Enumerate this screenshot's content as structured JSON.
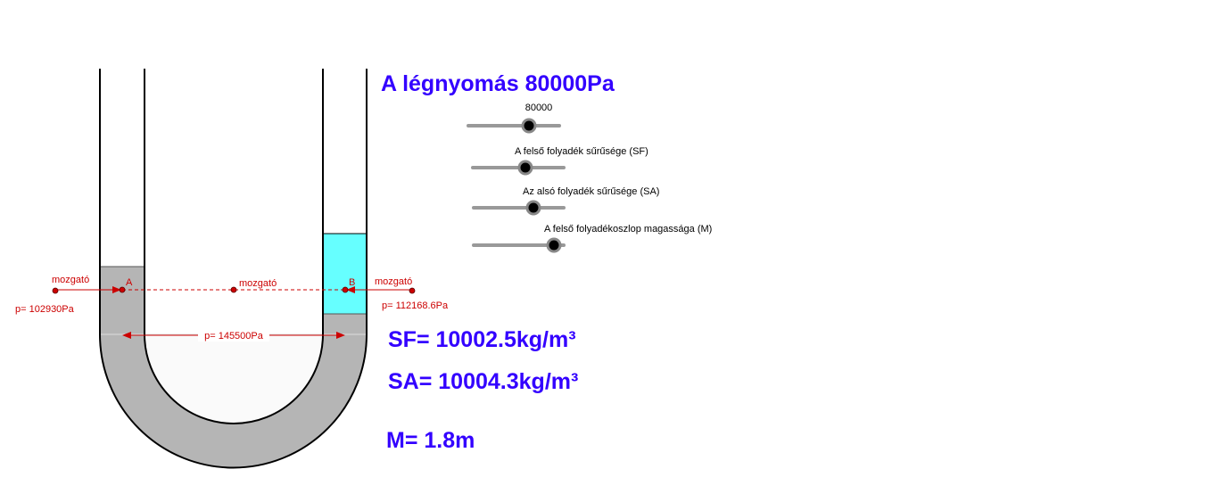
{
  "header": {
    "title": "A légnyomás 80000Pa"
  },
  "sliders": [
    {
      "label": "80000"
    },
    {
      "label": "A felső folyadék sűrűsége (SF)"
    },
    {
      "label": "Az alsó folyadék sűrűsége (SA)"
    },
    {
      "label": "A felső folyadékoszlop magassága (M)"
    }
  ],
  "points": {
    "left_handle": "mozgató",
    "center_handle": "mozgató",
    "right_handle": "mozgató",
    "a": "A",
    "b": "B"
  },
  "pressures": {
    "left": "p= 102930Pa",
    "bottom": "p= 145500Pa",
    "right": "p= 112168.6Pa"
  },
  "readouts": {
    "sf": "SF= 10002.5kg/m³",
    "sa": "SA= 10004.3kg/m³",
    "m": "M= 1.8m"
  }
}
